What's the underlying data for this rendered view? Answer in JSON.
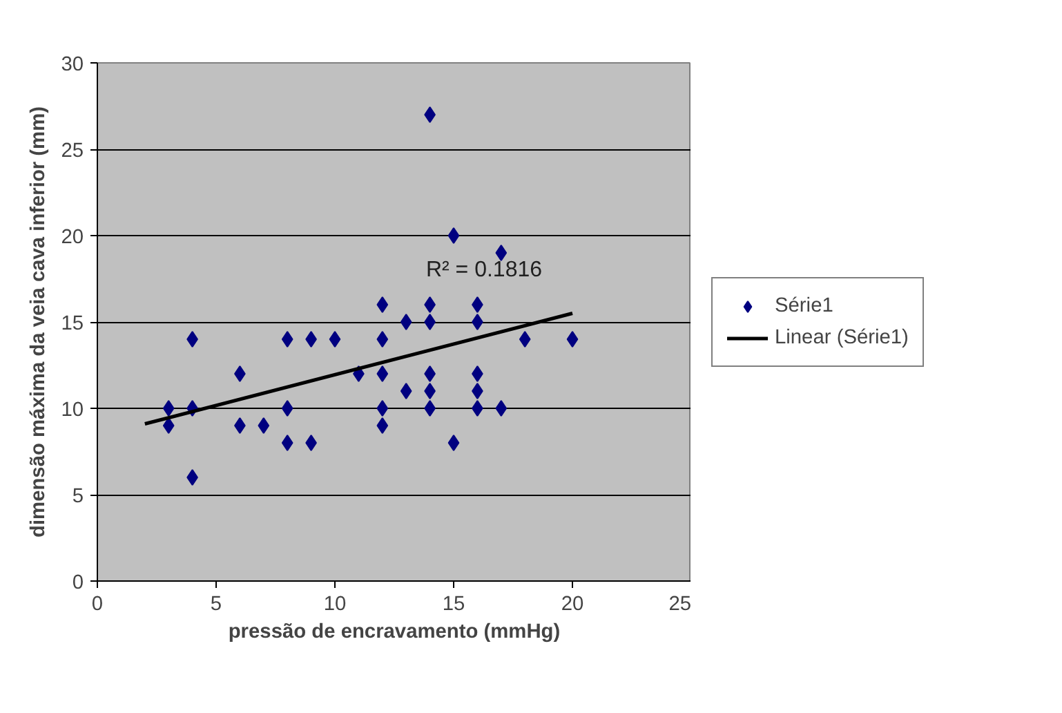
{
  "chart_data": {
    "type": "scatter",
    "xlabel": "pressão de encravamento (mmHg)",
    "ylabel": "dimensão máxima da veia cava inferior (mm)",
    "xlim": [
      0,
      25
    ],
    "ylim": [
      0,
      30
    ],
    "xticks": [
      0,
      5,
      10,
      15,
      20,
      25
    ],
    "yticks": [
      0,
      5,
      10,
      15,
      20,
      25,
      30
    ],
    "grid": "y",
    "legend": "right",
    "annotations": [
      "R² = 0.1816"
    ],
    "series": [
      {
        "name": "Série1",
        "marker": "diamond",
        "color": "#000080",
        "x": [
          3,
          3,
          4,
          4,
          4,
          6,
          6,
          7,
          8,
          8,
          8,
          9,
          9,
          10,
          11,
          12,
          12,
          12,
          12,
          12,
          13,
          13,
          14,
          14,
          14,
          14,
          14,
          14,
          15,
          15,
          16,
          16,
          16,
          16,
          16,
          17,
          17,
          18,
          20
        ],
        "values": [
          10,
          9,
          14,
          10,
          6,
          12,
          9,
          9,
          14,
          10,
          8,
          14,
          8,
          14,
          12,
          16,
          14,
          12,
          10,
          9,
          15,
          11,
          27,
          16,
          15,
          12,
          11,
          10,
          20,
          8,
          16,
          15,
          12,
          11,
          10,
          19,
          10,
          14,
          14
        ]
      },
      {
        "name": "Linear (Série1)",
        "type": "line",
        "color": "#000000",
        "line_style": "solid",
        "x": [
          2,
          20
        ],
        "values": [
          9.1,
          15.5
        ]
      }
    ]
  }
}
